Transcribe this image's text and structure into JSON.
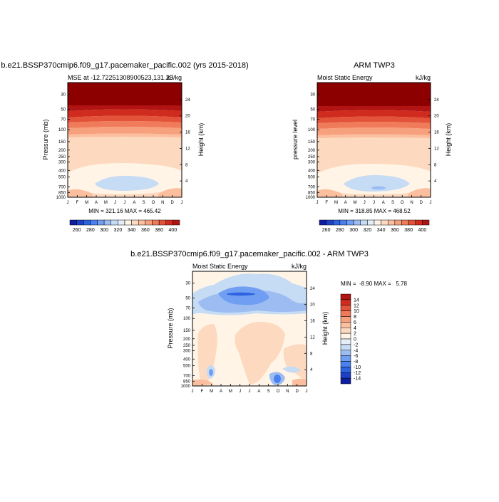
{
  "colors": {
    "mse_levels": [
      "#05047a",
      "#0e1ea0",
      "#1e3fc8",
      "#2d63e0",
      "#4a80f0",
      "#6f9ef2",
      "#9dbdf2",
      "#c6dcf4",
      "#e4eef8",
      "#fff4e6",
      "#fdd9c0",
      "#fbbf9f",
      "#f7a07d",
      "#f07b5b",
      "#e3533a",
      "#cf2c1f",
      "#b21313",
      "#8c0000"
    ],
    "diff_levels": [
      "#05047a",
      "#0e1ea0",
      "#1e3fc8",
      "#2d63e0",
      "#4a80f0",
      "#6f9ef2",
      "#9dbdf2",
      "#c6dcf4",
      "#e4eef8",
      "#fff4e6",
      "#fdd9c0",
      "#fbbf9f",
      "#f7a07d",
      "#f07b5b",
      "#e3533a",
      "#cf2c1f",
      "#b21313",
      "#8c0000"
    ]
  },
  "chart_data": [
    {
      "type": "heatmap",
      "title": "b.e21.BSSP370cmip6.f09_g17.pacemaker_pacific.002 (yrs 2015-2018)",
      "left_string": "MSE at -12.72251308900523,131.25",
      "right_string": "kJ/kg",
      "xlabel": "",
      "ylabel": "Pressure (mb)",
      "ylabel_right": "Height (km)",
      "x_ticks": [
        "J",
        "F",
        "M",
        "A",
        "M",
        "J",
        "J",
        "A",
        "S",
        "O",
        "N",
        "D",
        "J"
      ],
      "y_ticks": [
        "30",
        "50",
        "70",
        "100",
        "150",
        "200",
        "250",
        "300",
        "400",
        "500",
        "700",
        "850",
        "1000"
      ],
      "y_ticks_right": [
        "24",
        "20",
        "16",
        "12",
        "8",
        "4"
      ],
      "stats": "MIN = 321.16 MAX = 465.42",
      "colorbar_labels": [
        "260",
        "280",
        "300",
        "320",
        "340",
        "360",
        "380",
        "400"
      ],
      "min": 321.16,
      "max": 465.42
    },
    {
      "type": "heatmap",
      "title": "ARM TWP3",
      "left_string": "Moist Static Energy",
      "right_string": "kJ/kg",
      "xlabel": "",
      "ylabel": "pressure level",
      "ylabel_right": "Height (km)",
      "x_ticks": [
        "J",
        "F",
        "M",
        "A",
        "M",
        "J",
        "J",
        "A",
        "S",
        "O",
        "N",
        "D",
        "J"
      ],
      "y_ticks": [
        "30",
        "50",
        "70",
        "100",
        "150",
        "200",
        "250",
        "300",
        "400",
        "500",
        "700",
        "850",
        "1000"
      ],
      "y_ticks_right": [
        "24",
        "20",
        "16",
        "12",
        "8",
        "4"
      ],
      "stats": "MIN = 318.85 MAX = 468.52",
      "colorbar_labels": [
        "260",
        "280",
        "300",
        "320",
        "340",
        "360",
        "380",
        "400"
      ],
      "min": 318.85,
      "max": 468.52
    },
    {
      "type": "heatmap",
      "title": "b.e21.BSSP370cmip6.f09_g17.pacemaker_pacific.002 - ARM TWP3",
      "left_string": "Moist Static Energy",
      "right_string": "kJ/kg",
      "xlabel": "",
      "ylabel": "Pressure (mb)",
      "ylabel_right": "Height (km)",
      "x_ticks": [
        "J",
        "F",
        "M",
        "A",
        "M",
        "J",
        "J",
        "A",
        "S",
        "O",
        "N",
        "D",
        "J"
      ],
      "y_ticks": [
        "30",
        "50",
        "70",
        "100",
        "150",
        "200",
        "250",
        "300",
        "400",
        "500",
        "700",
        "850",
        "1000"
      ],
      "y_ticks_right": [
        "24",
        "20",
        "16",
        "12",
        "8",
        "4"
      ],
      "stats": "MIN =  -8.90 MAX =   5.78",
      "colorbar_labels": [
        "14",
        "12",
        "10",
        "8",
        "6",
        "4",
        "2",
        "0",
        "-2",
        "-4",
        "-6",
        "-8",
        "-10",
        "-12",
        "-14"
      ],
      "min": -8.9,
      "max": 5.78
    }
  ]
}
